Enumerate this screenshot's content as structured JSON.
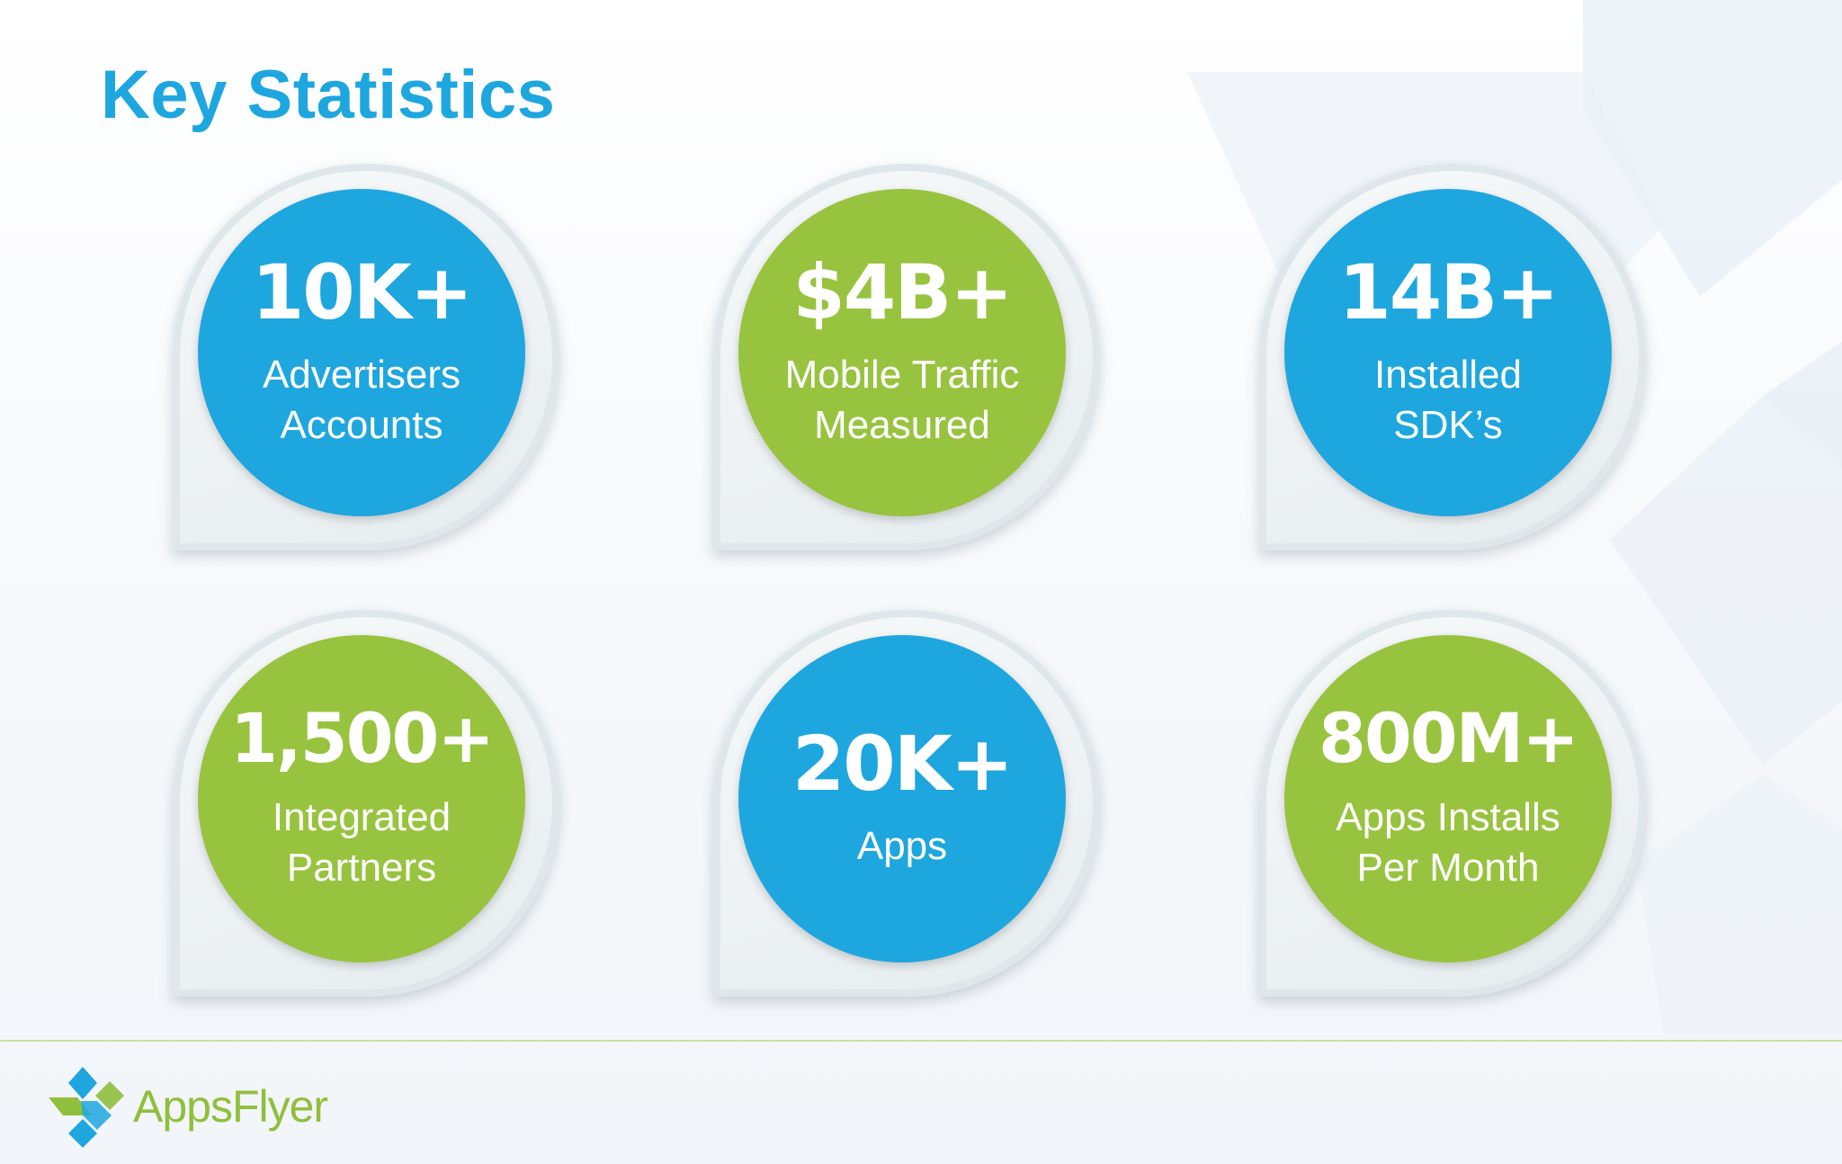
{
  "slide": {
    "title": "Key Statistics"
  },
  "colors": {
    "blue": "#1ea6df",
    "green": "#98c33f",
    "title": "#1ea6df"
  },
  "stats": [
    {
      "value": "10K+",
      "label": "Advertisers\nAccounts",
      "color": "blue"
    },
    {
      "value": "$4B+",
      "label": "Mobile Traffic\nMeasured",
      "color": "green"
    },
    {
      "value": "14B+",
      "label": "Installed\nSDK’s",
      "color": "blue"
    },
    {
      "value": "1,500+",
      "label": "Integrated\nPartners",
      "color": "green"
    },
    {
      "value": "20K+",
      "label": "Apps",
      "color": "blue"
    },
    {
      "value": "800M+",
      "label": "Apps Installs\nPer Month",
      "color": "green"
    }
  ],
  "footer": {
    "logo_text": "AppsFlyer",
    "logo_icon": "appsflyer-logo-icon"
  }
}
